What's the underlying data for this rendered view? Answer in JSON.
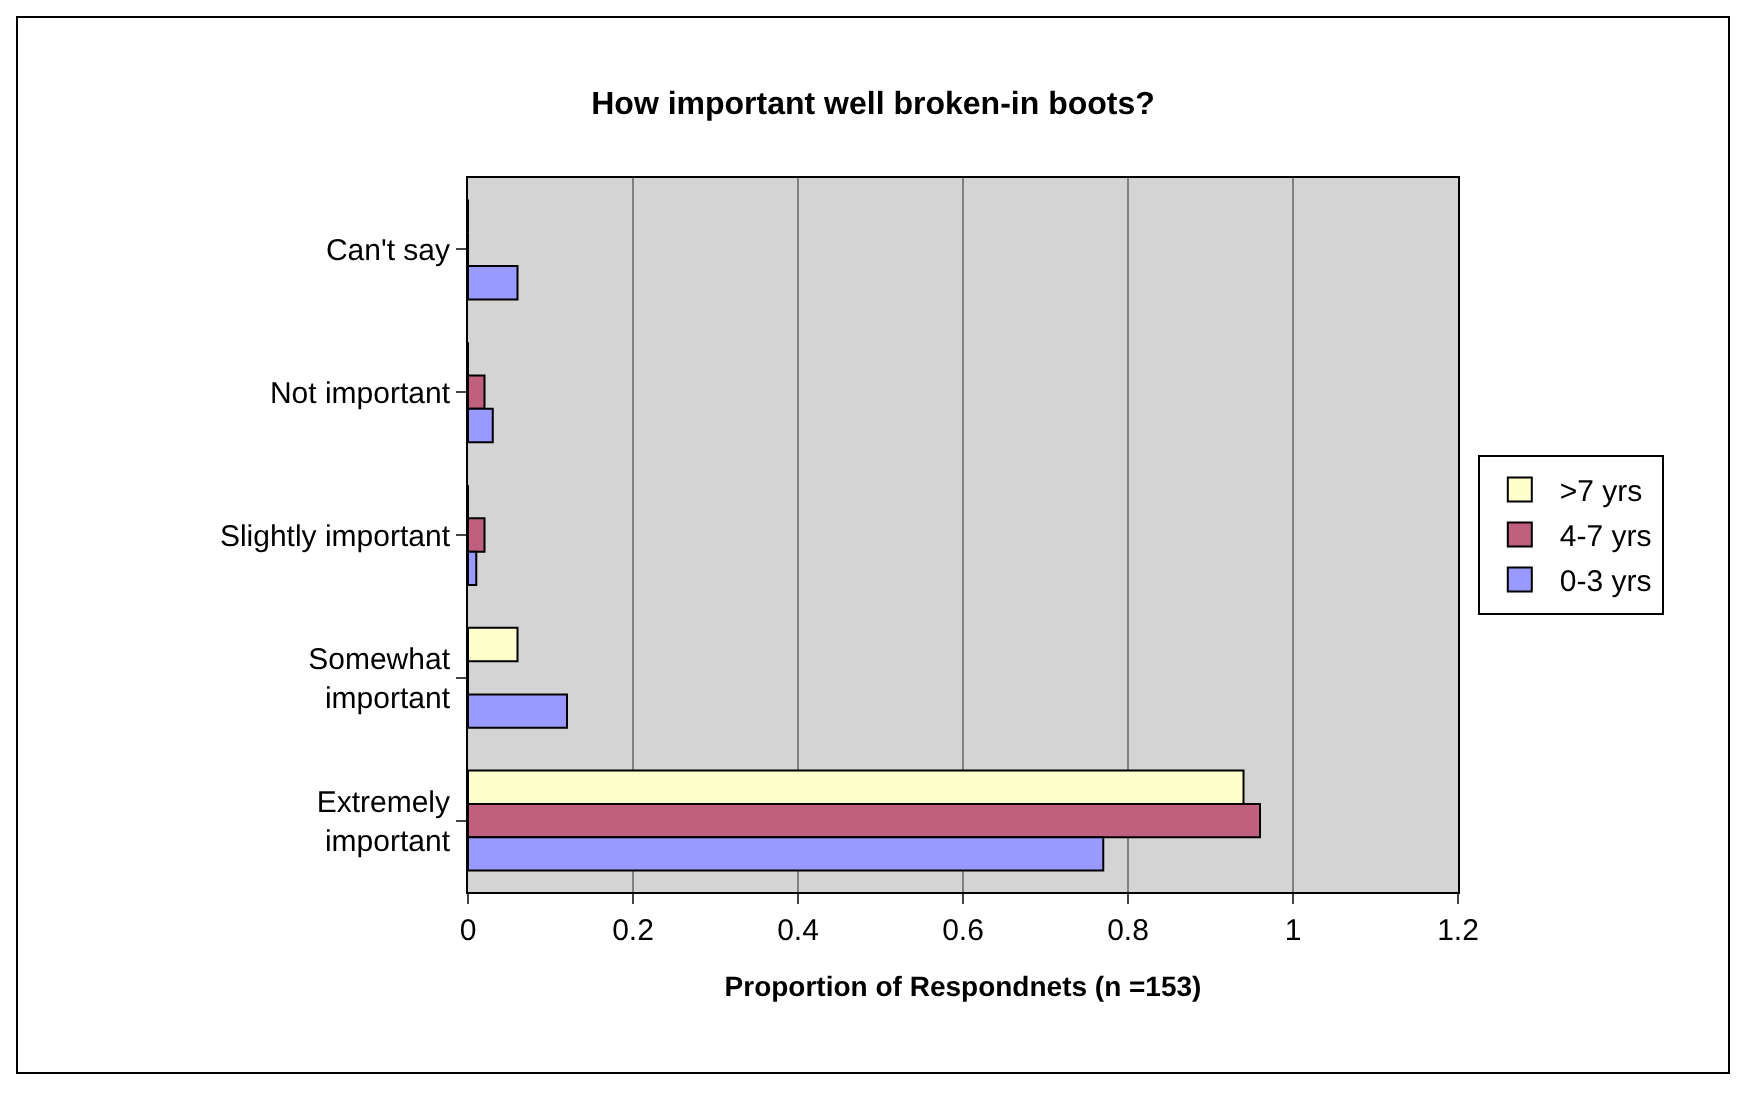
{
  "chart_data": {
    "type": "bar",
    "orientation": "horizontal",
    "title": "How important well broken-in boots?",
    "xlabel": "Proportion of Respondnets (n =153)",
    "categories": [
      "Can't say",
      "Not important",
      "Slightly important",
      "Somewhat\nimportant",
      "Extremely\nimportant"
    ],
    "series": [
      {
        "name": ">7 yrs",
        "color": "#ffffcc",
        "values": [
          0,
          0,
          0,
          0.06,
          0.94
        ]
      },
      {
        "name": "4-7 yrs",
        "color": "#c0607f",
        "values": [
          0,
          0.02,
          0.02,
          0,
          0.96
        ]
      },
      {
        "name": "0-3 yrs",
        "color": "#9999ff",
        "values": [
          0.06,
          0.03,
          0.01,
          0.12,
          0.77
        ]
      }
    ],
    "xlim": [
      0,
      1.2
    ],
    "xticks": [
      0,
      0.2,
      0.4,
      0.6,
      0.8,
      1,
      1.2
    ],
    "grid": "x",
    "legend": "right"
  }
}
